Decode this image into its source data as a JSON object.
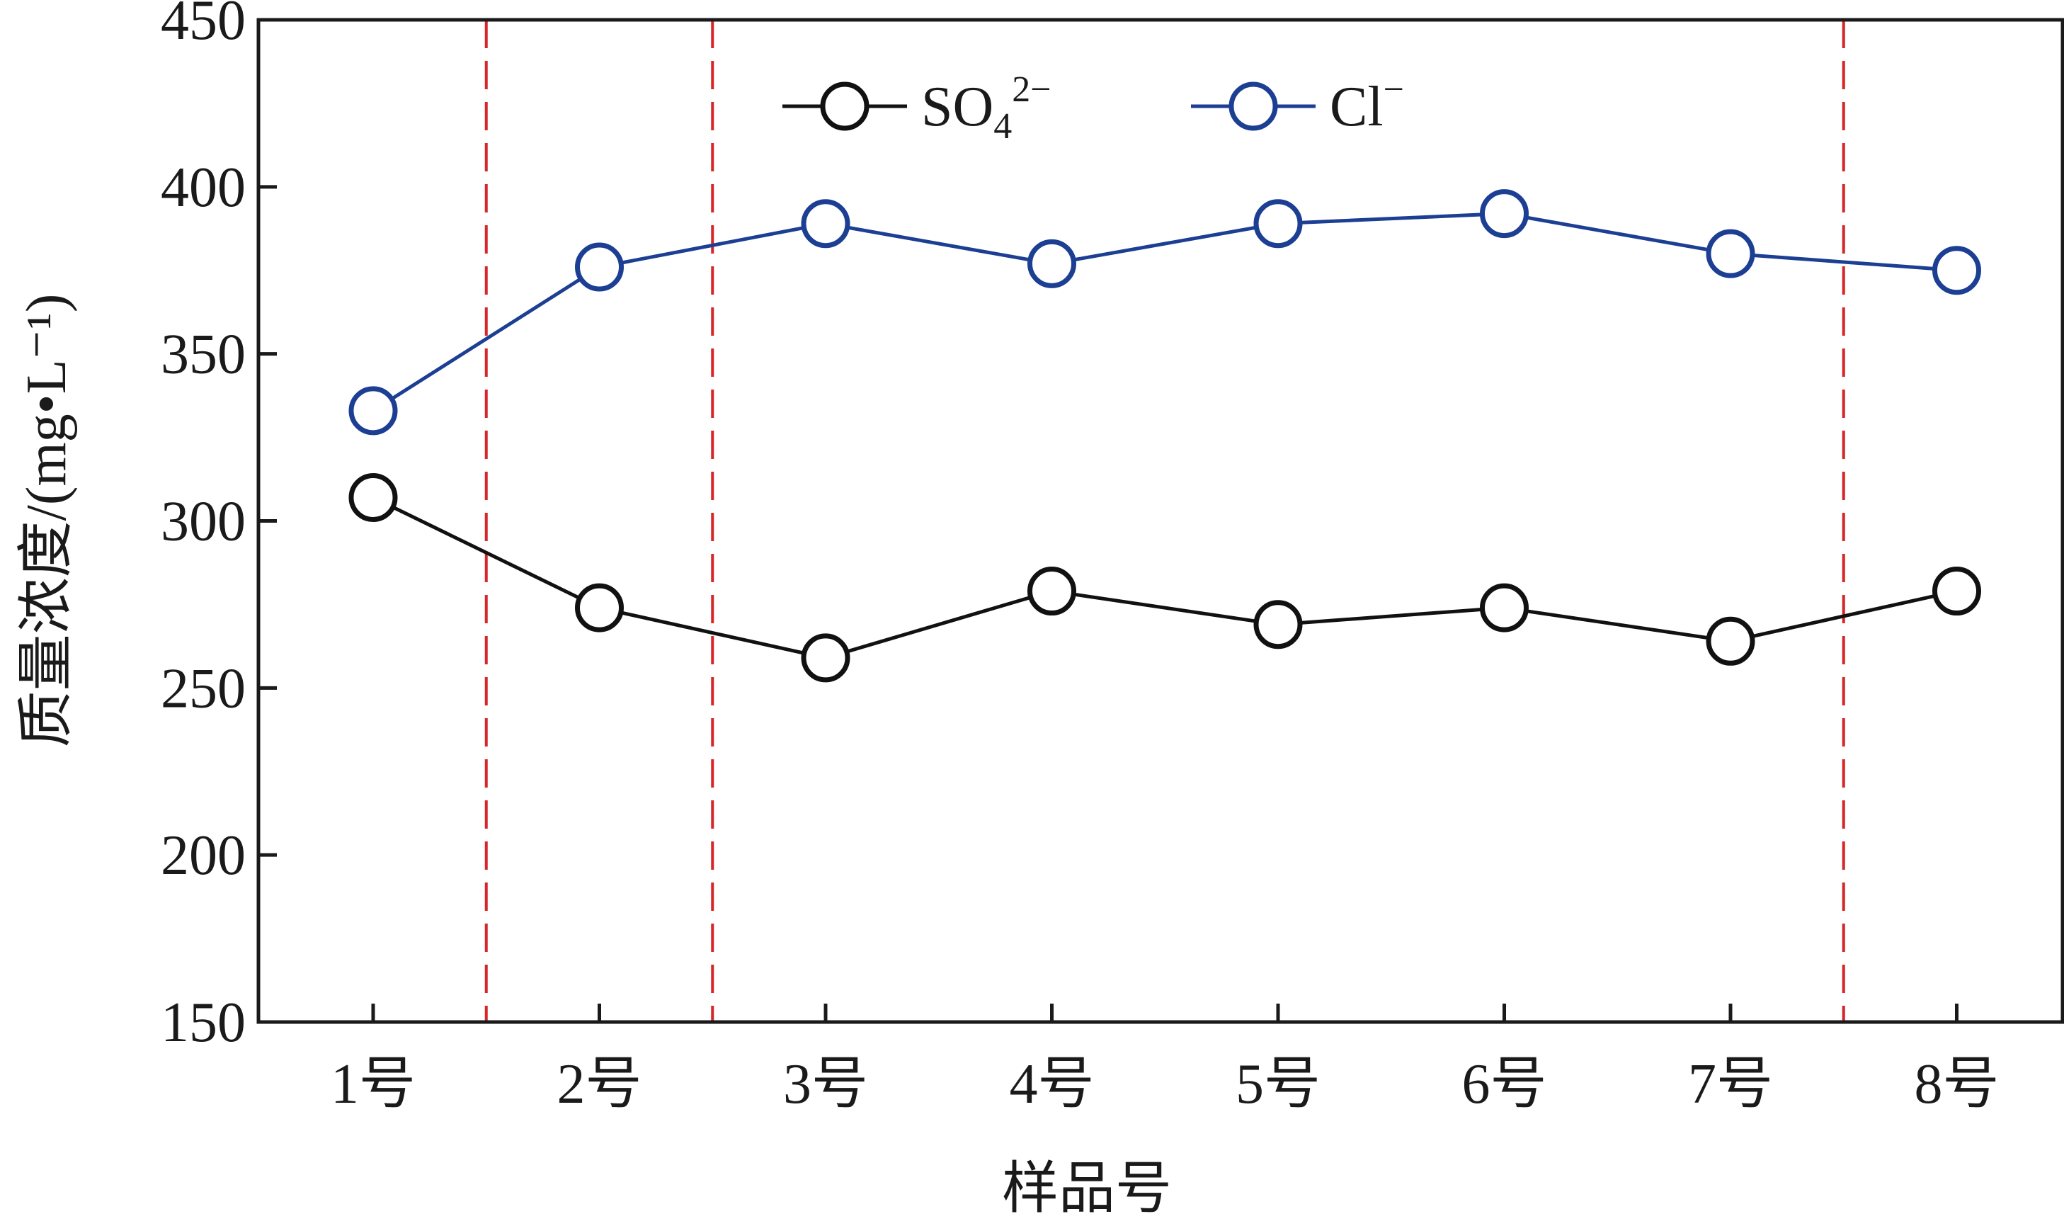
{
  "chart_data": {
    "type": "line",
    "title": "",
    "xlabel": "样品号",
    "ylabel": "质量浓度/(mg•L⁻¹)",
    "categories": [
      "1号",
      "2号",
      "3号",
      "4号",
      "5号",
      "6号",
      "7号",
      "8号"
    ],
    "ylim": [
      150,
      450
    ],
    "yticks": [
      150,
      200,
      250,
      300,
      350,
      400,
      450
    ],
    "grid": false,
    "legend_position": "top-center",
    "series": [
      {
        "name": "SO₄²⁻",
        "legend_base": "SO",
        "legend_sub": "4",
        "legend_sup": "2−",
        "color": "#111111",
        "marker": "open-circle",
        "values": [
          307,
          274,
          259,
          279,
          269,
          274,
          264,
          279
        ]
      },
      {
        "name": "Cl⁻",
        "legend_base": "Cl",
        "legend_sub": "",
        "legend_sup": "−",
        "color": "#1c3f94",
        "marker": "open-circle",
        "values": [
          333,
          376,
          389,
          377,
          389,
          392,
          380,
          375
        ]
      }
    ],
    "reference_lines": {
      "color": "#d62728",
      "style": "dashed",
      "between_categories": [
        [
          1,
          2
        ],
        [
          2,
          3
        ],
        [
          7,
          8
        ]
      ]
    }
  }
}
